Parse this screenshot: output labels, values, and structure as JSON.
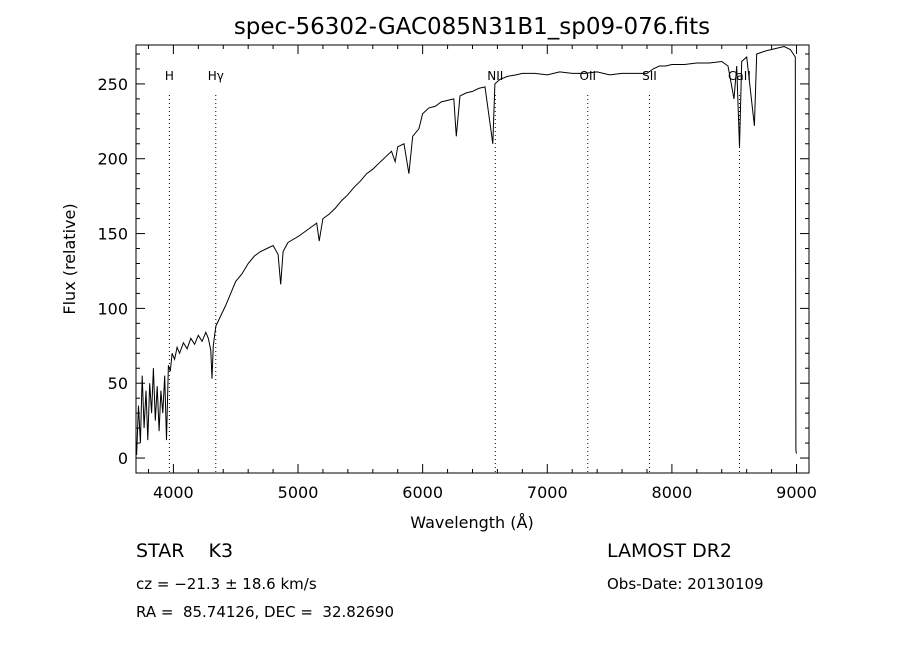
{
  "chart_data": {
    "type": "line",
    "title": "spec-56302-GAC085N31B1_sp09-076.fits",
    "xlabel": "Wavelength (Å)",
    "ylabel": "Flux (relative)",
    "xlim": [
      3700,
      9100
    ],
    "ylim": [
      -10,
      276
    ],
    "x_ticks": [
      4000,
      5000,
      6000,
      7000,
      8000,
      9000
    ],
    "y_ticks": [
      0,
      50,
      100,
      150,
      200,
      250
    ],
    "grid": false,
    "series": [
      {
        "points": [
          [
            3705,
            2
          ],
          [
            3720,
            35
          ],
          [
            3735,
            10
          ],
          [
            3750,
            55
          ],
          [
            3765,
            20
          ],
          [
            3780,
            45
          ],
          [
            3795,
            12
          ],
          [
            3810,
            50
          ],
          [
            3825,
            30
          ],
          [
            3840,
            60
          ],
          [
            3855,
            25
          ],
          [
            3870,
            48
          ],
          [
            3885,
            18
          ],
          [
            3900,
            45
          ],
          [
            3915,
            30
          ],
          [
            3930,
            55
          ],
          [
            3945,
            12
          ],
          [
            3960,
            62
          ],
          [
            3975,
            58
          ],
          [
            3990,
            70
          ],
          [
            4010,
            66
          ],
          [
            4030,
            74
          ],
          [
            4050,
            70
          ],
          [
            4080,
            77
          ],
          [
            4110,
            73
          ],
          [
            4140,
            80
          ],
          [
            4170,
            76
          ],
          [
            4200,
            82
          ],
          [
            4230,
            78
          ],
          [
            4260,
            84
          ],
          [
            4280,
            80
          ],
          [
            4300,
            72
          ],
          [
            4310,
            53
          ],
          [
            4320,
            75
          ],
          [
            4340,
            88
          ],
          [
            4380,
            95
          ],
          [
            4420,
            102
          ],
          [
            4460,
            110
          ],
          [
            4500,
            118
          ],
          [
            4550,
            123
          ],
          [
            4600,
            130
          ],
          [
            4650,
            135
          ],
          [
            4700,
            138
          ],
          [
            4750,
            140
          ],
          [
            4800,
            142
          ],
          [
            4840,
            136
          ],
          [
            4861,
            116
          ],
          [
            4880,
            138
          ],
          [
            4920,
            144
          ],
          [
            4960,
            146
          ],
          [
            5000,
            148
          ],
          [
            5050,
            151
          ],
          [
            5100,
            154
          ],
          [
            5150,
            157
          ],
          [
            5170,
            145
          ],
          [
            5200,
            160
          ],
          [
            5250,
            163
          ],
          [
            5300,
            167
          ],
          [
            5350,
            172
          ],
          [
            5400,
            176
          ],
          [
            5450,
            181
          ],
          [
            5500,
            185
          ],
          [
            5550,
            190
          ],
          [
            5600,
            193
          ],
          [
            5650,
            197
          ],
          [
            5700,
            201
          ],
          [
            5750,
            205
          ],
          [
            5780,
            198
          ],
          [
            5800,
            208
          ],
          [
            5850,
            210
          ],
          [
            5890,
            190
          ],
          [
            5920,
            215
          ],
          [
            5970,
            220
          ],
          [
            6000,
            230
          ],
          [
            6050,
            234
          ],
          [
            6100,
            235
          ],
          [
            6150,
            238
          ],
          [
            6200,
            239
          ],
          [
            6250,
            240
          ],
          [
            6270,
            215
          ],
          [
            6300,
            242
          ],
          [
            6350,
            244
          ],
          [
            6400,
            245
          ],
          [
            6450,
            247
          ],
          [
            6500,
            248
          ],
          [
            6563,
            210
          ],
          [
            6580,
            250
          ],
          [
            6620,
            253
          ],
          [
            6680,
            255
          ],
          [
            6750,
            256
          ],
          [
            6800,
            257
          ],
          [
            6900,
            257
          ],
          [
            7000,
            256
          ],
          [
            7100,
            258
          ],
          [
            7200,
            257
          ],
          [
            7300,
            257
          ],
          [
            7400,
            258
          ],
          [
            7500,
            256
          ],
          [
            7600,
            257
          ],
          [
            7700,
            257
          ],
          [
            7800,
            257
          ],
          [
            7850,
            260
          ],
          [
            7900,
            262
          ],
          [
            7950,
            262
          ],
          [
            8000,
            263
          ],
          [
            8100,
            263
          ],
          [
            8200,
            264
          ],
          [
            8300,
            264
          ],
          [
            8400,
            265
          ],
          [
            8450,
            262
          ],
          [
            8498,
            240
          ],
          [
            8520,
            262
          ],
          [
            8542,
            208
          ],
          [
            8560,
            265
          ],
          [
            8600,
            268
          ],
          [
            8662,
            222
          ],
          [
            8680,
            270
          ],
          [
            8750,
            272
          ],
          [
            8800,
            273
          ],
          [
            8850,
            274
          ],
          [
            8900,
            275
          ],
          [
            8950,
            273
          ],
          [
            8990,
            268
          ],
          [
            8995,
            5
          ],
          [
            9000,
            3
          ]
        ]
      }
    ],
    "lines": [
      {
        "label": "H",
        "x": 3968
      },
      {
        "label": "Hγ",
        "x": 4340
      },
      {
        "label": "NII",
        "x": 6583
      },
      {
        "label": "OII",
        "x": 7325
      },
      {
        "label": "SII",
        "x": 7820
      },
      {
        "label": "CaII",
        "x": 8542
      }
    ]
  },
  "info": {
    "class_line": "STAR    K3",
    "survey": "LAMOST DR2",
    "cz": "cz = −21.3 ± 18.6 km/s",
    "obs_date": "Obs-Date: 20130109",
    "radec": "RA =  85.74126, DEC =  32.82690"
  }
}
